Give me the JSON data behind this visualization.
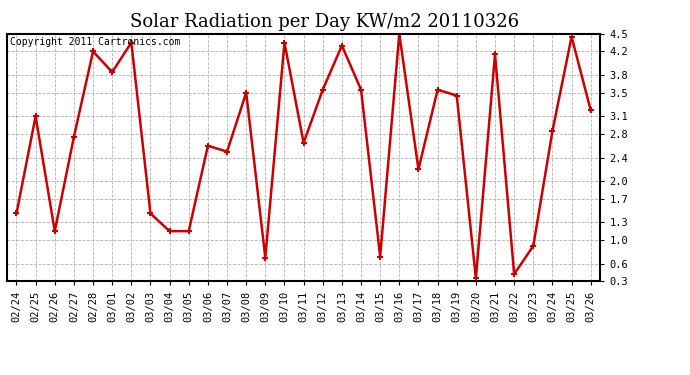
{
  "title": "Solar Radiation per Day KW/m2 20110326",
  "copyright": "Copyright 2011 Cartronics.com",
  "dates": [
    "02/24",
    "02/25",
    "02/26",
    "02/27",
    "02/28",
    "03/01",
    "03/02",
    "03/03",
    "03/04",
    "03/05",
    "03/06",
    "03/07",
    "03/08",
    "03/09",
    "03/10",
    "03/11",
    "03/12",
    "03/13",
    "03/14",
    "03/15",
    "03/16",
    "03/17",
    "03/18",
    "03/19",
    "03/20",
    "03/21",
    "03/22",
    "03/23",
    "03/24",
    "03/25",
    "03/26"
  ],
  "values": [
    1.45,
    3.1,
    1.15,
    2.75,
    4.2,
    3.85,
    4.35,
    1.45,
    1.15,
    1.15,
    2.6,
    2.5,
    3.5,
    0.7,
    4.35,
    2.65,
    3.55,
    4.3,
    3.55,
    0.72,
    4.5,
    2.2,
    3.55,
    3.45,
    0.35,
    4.15,
    0.42,
    0.9,
    2.85,
    4.45,
    3.2
  ],
  "line_color": "#cc0000",
  "marker_color": "#cc0000",
  "bg_color": "#ffffff",
  "grid_color": "#aaaaaa",
  "ylim_min": 0.3,
  "ylim_max": 4.5,
  "yticks": [
    0.3,
    0.6,
    1.0,
    1.3,
    1.7,
    2.0,
    2.4,
    2.8,
    3.1,
    3.5,
    3.8,
    4.2,
    4.5
  ],
  "title_fontsize": 13,
  "copyright_fontsize": 7,
  "tick_fontsize": 7.5
}
